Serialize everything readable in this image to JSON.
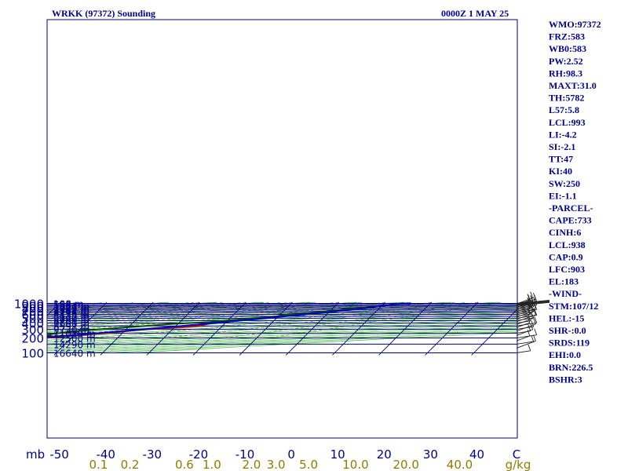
{
  "header": {
    "station": "WRKK (97372) Sounding",
    "time": "0000Z  1 MAY 25"
  },
  "indices": [
    "WMO:97372",
    "FRZ:583",
    "WB0:583",
    "PW:2.52",
    "RH:98.3",
    "MAXT:31.0",
    "TH:5782",
    "L57:5.8",
    "LCL:993",
    "LI:-4.2",
    "SI:-2.1",
    "TT:47",
    "KI:40",
    "SW:250",
    "EI:-1.1",
    "-PARCEL-",
    "CAPE:733",
    "CINH:6",
    "LCL:938",
    "CAP:0.9",
    "LFC:903",
    "EL:183",
    "-WIND-",
    "STM:107/12",
    "HEL:-15",
    "SHR-:0.0",
    "SRDS:119",
    "EHI:0.0",
    "BRN:226.5",
    "BSHR:3"
  ],
  "chart_data": {
    "type": "line",
    "title": "WRKK (97372) Sounding",
    "subtitle": "0000Z  1 MAY 25",
    "xlabel": "C",
    "ylabel": "mb",
    "y_scale": "log",
    "xlim": [
      -50,
      50
    ],
    "ylim": [
      1000,
      100
    ],
    "pressure_ticks": [
      {
        "p": 100,
        "label": "100"
      },
      {
        "p": 200,
        "label": "200"
      },
      {
        "p": 300,
        "label": "300"
      },
      {
        "p": 400,
        "label": "400"
      },
      {
        "p": 500,
        "label": "500"
      },
      {
        "p": 600,
        "label": "600"
      },
      {
        "p": 700,
        "label": "700"
      },
      {
        "p": 800,
        "label": "800"
      },
      {
        "p": 900,
        "label": "900"
      },
      {
        "p": 1000,
        "label": "1000"
      }
    ],
    "temp_ticks": [
      {
        "t": -50,
        "label": "-50"
      },
      {
        "t": -40,
        "label": "-40"
      },
      {
        "t": -30,
        "label": "-30"
      },
      {
        "t": -20,
        "label": "-20"
      },
      {
        "t": -10,
        "label": "-10"
      },
      {
        "t": 0,
        "label": "0"
      },
      {
        "t": 10,
        "label": "10"
      },
      {
        "t": 20,
        "label": "20"
      },
      {
        "t": 30,
        "label": "30"
      },
      {
        "t": 40,
        "label": "40"
      }
    ],
    "height_levels": [
      {
        "p": 100,
        "label": "16640 m"
      },
      {
        "p": 150,
        "label": "14290 m"
      },
      {
        "p": 200,
        "label": "12500 m"
      },
      {
        "p": 250,
        "label": "11010 m"
      },
      {
        "p": 300,
        "label": "9730 m"
      },
      {
        "p": 350,
        "label": "8597 m"
      },
      {
        "p": 400,
        "label": "7600 m"
      },
      {
        "p": 450,
        "label": "6701 m"
      },
      {
        "p": 500,
        "label": "5890 m"
      },
      {
        "p": 550,
        "label": "5132 m"
      },
      {
        "p": 600,
        "label": "4435 m"
      },
      {
        "p": 650,
        "label": "3778 m"
      },
      {
        "p": 700,
        "label": "3164 m"
      },
      {
        "p": 750,
        "label": "2582 m"
      },
      {
        "p": 800,
        "label": "2037 m"
      },
      {
        "p": 850,
        "label": "1526 m"
      },
      {
        "p": 900,
        "label": "1031 m"
      },
      {
        "p": 950,
        "label": "558 m"
      },
      {
        "p": 1000,
        "label": "108 m"
      }
    ],
    "mixing_ratio_ticks": [
      {
        "w": 0.1,
        "label": "0.1"
      },
      {
        "w": 0.2,
        "label": "0.2"
      },
      {
        "w": 0.6,
        "label": "0.6"
      },
      {
        "w": 1.0,
        "label": "1.0"
      },
      {
        "w": 2.0,
        "label": "2.0"
      },
      {
        "w": 3.0,
        "label": "3.0"
      },
      {
        "w": 5.0,
        "label": "5.0"
      },
      {
        "w": 10.0,
        "label": "10.0"
      },
      {
        "w": 20.0,
        "label": "20.0"
      },
      {
        "w": 40.0,
        "label": "40.0"
      }
    ],
    "mixing_ratio_unit": "g/kg",
    "series": [
      {
        "role": "temperature",
        "color": "#cc0000",
        "points": [
          [
            1000,
            24.8
          ],
          [
            990,
            24.0
          ],
          [
            975,
            23.2
          ],
          [
            950,
            22.4
          ],
          [
            925,
            21.5
          ],
          [
            900,
            20.4
          ],
          [
            850,
            17.8
          ],
          [
            800,
            15.4
          ],
          [
            750,
            12.4
          ],
          [
            700,
            9.8
          ],
          [
            650,
            6.8
          ],
          [
            600,
            3.9
          ],
          [
            550,
            0.2
          ],
          [
            500,
            -4.3
          ],
          [
            450,
            -7.8
          ],
          [
            420,
            -10.2
          ],
          [
            400,
            -12.8
          ],
          [
            350,
            -15.2
          ],
          [
            300,
            -25.6
          ],
          [
            250,
            -33.6
          ],
          [
            200,
            -46.0
          ],
          [
            150,
            -62.0
          ],
          [
            125,
            -68.6
          ],
          [
            100,
            -71.0
          ]
        ]
      },
      {
        "role": "dewpoint",
        "color": "#004d00",
        "points": [
          [
            1000,
            24.2
          ],
          [
            975,
            23.0
          ],
          [
            950,
            22.0
          ],
          [
            925,
            21.2
          ],
          [
            900,
            20.3
          ],
          [
            850,
            17.6
          ],
          [
            800,
            15.2
          ],
          [
            750,
            12.2
          ],
          [
            700,
            9.6
          ],
          [
            650,
            6.6
          ],
          [
            620,
            5.2
          ],
          [
            600,
            2.0
          ],
          [
            550,
            -0.2
          ],
          [
            500,
            -4.5
          ],
          [
            450,
            -10.2
          ],
          [
            420,
            -13.5
          ],
          [
            400,
            -17.6
          ],
          [
            380,
            -22.0
          ],
          [
            350,
            -26.6
          ],
          [
            300,
            -35.5
          ],
          [
            270,
            -41.0
          ],
          [
            250,
            -43.6
          ],
          [
            230,
            -46.3
          ],
          [
            225,
            -44.8
          ],
          [
            215,
            -48.8
          ],
          [
            200,
            -53.0
          ],
          [
            175,
            -58.4
          ],
          [
            150,
            -63.0
          ],
          [
            125,
            -69.5
          ],
          [
            100,
            -78.5
          ]
        ]
      },
      {
        "role": "parcel",
        "color": "#0000cc",
        "points": [
          [
            1000,
            25.8
          ],
          [
            975,
            23.6
          ],
          [
            950,
            22.4
          ],
          [
            938,
            21.8
          ],
          [
            900,
            20.6
          ],
          [
            850,
            18.7
          ],
          [
            800,
            16.8
          ],
          [
            750,
            14.4
          ],
          [
            700,
            11.8
          ],
          [
            650,
            8.8
          ],
          [
            600,
            5.5
          ],
          [
            550,
            1.7
          ],
          [
            500,
            -2.3
          ],
          [
            450,
            -7.0
          ],
          [
            400,
            -12.4
          ],
          [
            350,
            -18.8
          ],
          [
            300,
            -26.0
          ],
          [
            250,
            -35.2
          ],
          [
            200,
            -47.8
          ],
          [
            183,
            -53.0
          ],
          [
            150,
            -63.5
          ],
          [
            125,
            -74.0
          ],
          [
            100,
            -84.0
          ]
        ]
      }
    ],
    "grid": true,
    "legend": "none"
  }
}
